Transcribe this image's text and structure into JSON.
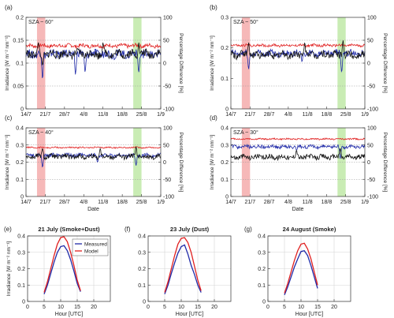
{
  "figure": {
    "colors": {
      "measured": "#1f2aa8",
      "model": "#e02020",
      "difference": "#111111",
      "red_band": "#f6b8b8",
      "green_band": "#c9ecb4",
      "grid": "#d6d6d6"
    },
    "axis_labels": {
      "irradiance": "Irradiance [W m⁻² nm⁻¹]",
      "pct_diff": "Percentage Difference [%]",
      "date": "Date",
      "hour": "Hour [UTC]"
    }
  },
  "chart_data": [
    {
      "type": "line",
      "panel": "(a)",
      "title": "SZA ~ 60°",
      "xlabel": "",
      "ylabel": "Irradiance [W m⁻² nm⁻¹]",
      "y2label": "Percentage Difference [%]",
      "x_ticks": [
        "14/7",
        "21/7",
        "28/7",
        "4/8",
        "11/8",
        "18/8",
        "25/8",
        "1/9"
      ],
      "ylim": [
        0,
        0.2
      ],
      "y_ticks": [
        0,
        0.05,
        0.1,
        0.15,
        0.2
      ],
      "y2lim": [
        -100,
        100
      ],
      "y2_ticks": [
        -100,
        -50,
        0,
        50,
        100
      ],
      "grid": "horizontal dotted",
      "bands": [
        {
          "color": "red",
          "from": "18/7",
          "to": "21/7"
        },
        {
          "color": "green",
          "from": "22/8",
          "to": "25/8"
        }
      ],
      "series": [
        {
          "role": "model",
          "base": 0.138,
          "noise": 0.004
        },
        {
          "role": "measured",
          "base": 0.12,
          "noise": 0.009,
          "dips": [
            {
              "day": 6,
              "to": 0.065
            },
            {
              "day": 18,
              "to": 0.075
            },
            {
              "day": 21.5,
              "to": 0.08
            },
            {
              "day": 41,
              "to": 0.08
            }
          ]
        },
        {
          "role": "difference",
          "axis": "right",
          "base": 20,
          "noise": 9,
          "dips": [
            {
              "day": 4.5,
              "to": 45
            },
            {
              "day": 6,
              "to": -5
            },
            {
              "day": 28,
              "to": 45
            },
            {
              "day": 41,
              "to": 45
            }
          ]
        }
      ]
    },
    {
      "type": "line",
      "panel": "(b)",
      "title": "SZA ~ 50°",
      "xlabel": "",
      "ylabel": "Irradiance [W m⁻² nm⁻¹]",
      "y2label": "Percentage Difference [%]",
      "x_ticks": [
        "14/7",
        "21/7",
        "28/7",
        "4/8",
        "11/8",
        "18/8",
        "25/8",
        "1/9"
      ],
      "ylim": [
        0,
        0.3
      ],
      "y_ticks": [
        0,
        0.1,
        0.2,
        0.3
      ],
      "y2lim": [
        -100,
        100
      ],
      "y2_ticks": [
        -100,
        -50,
        0,
        50,
        100
      ],
      "grid": "horizontal dotted",
      "bands": [
        {
          "color": "red",
          "from": "18/7",
          "to": "21/7"
        },
        {
          "color": "green",
          "from": "22/8",
          "to": "25/8"
        }
      ],
      "series": [
        {
          "role": "model",
          "base": 0.208,
          "noise": 0.004
        },
        {
          "role": "measured",
          "base": 0.182,
          "noise": 0.01,
          "dips": [
            {
              "day": 6.5,
              "to": 0.13
            },
            {
              "day": 26,
              "to": 0.155
            },
            {
              "day": 40.5,
              "to": 0.12
            }
          ]
        },
        {
          "role": "difference",
          "axis": "right",
          "base": 18,
          "noise": 8,
          "dips": [
            {
              "day": 6.5,
              "to": 45
            },
            {
              "day": 27,
              "to": 45
            },
            {
              "day": 41,
              "to": 50
            }
          ]
        }
      ]
    },
    {
      "type": "line",
      "panel": "(c)",
      "title": "SZA ~ 40°",
      "xlabel": "Date",
      "ylabel": "Irradiance [W m⁻² nm⁻¹]",
      "y2label": "Percentage Difference [%]",
      "x_ticks": [
        "14/7",
        "21/7",
        "28/7",
        "4/8",
        "11/8",
        "18/8",
        "25/8",
        "1/9"
      ],
      "ylim": [
        0,
        0.4
      ],
      "y_ticks": [
        0,
        0.1,
        0.2,
        0.3,
        0.4
      ],
      "y2lim": [
        -100,
        100
      ],
      "y2_ticks": [
        -100,
        -50,
        0,
        50,
        100
      ],
      "grid": "horizontal dotted",
      "bands": [
        {
          "color": "red",
          "from": "18/7",
          "to": "21/7"
        },
        {
          "color": "green",
          "from": "22/8",
          "to": "25/8"
        }
      ],
      "series": [
        {
          "role": "model",
          "base": 0.285,
          "noise": 0.004
        },
        {
          "role": "measured",
          "base": 0.24,
          "noise": 0.01,
          "dips": [
            {
              "day": 6,
              "to": 0.17
            },
            {
              "day": 26,
              "to": 0.2
            },
            {
              "day": 40,
              "to": 0.18
            }
          ]
        },
        {
          "role": "difference",
          "axis": "right",
          "base": 16,
          "noise": 7,
          "dips": [
            {
              "day": 6,
              "to": 40
            },
            {
              "day": 27,
              "to": 40
            },
            {
              "day": 40,
              "to": 45
            }
          ]
        }
      ]
    },
    {
      "type": "line",
      "panel": "(d)",
      "title": "SZA ~ 30°",
      "xlabel": "Date",
      "ylabel": "Irradiance [W m⁻² nm⁻¹]",
      "y2label": "Percentage Difference [%]",
      "x_ticks": [
        "14/7",
        "21/7",
        "28/7",
        "4/8",
        "11/8",
        "18/8",
        "25/8",
        "1/9"
      ],
      "ylim": [
        0,
        0.4
      ],
      "y_ticks": [
        0,
        0.1,
        0.2,
        0.3,
        0.4
      ],
      "y2lim": [
        -100,
        100
      ],
      "y2_ticks": [
        -100,
        -50,
        0,
        50,
        100
      ],
      "grid": "horizontal dotted",
      "bands": [
        {
          "color": "red",
          "from": "18/7",
          "to": "21/7"
        },
        {
          "color": "green",
          "from": "22/8",
          "to": "25/8"
        }
      ],
      "series": [
        {
          "role": "model",
          "base": 0.335,
          "noise": 0.004
        },
        {
          "role": "measured",
          "base": 0.29,
          "noise": 0.01,
          "dips": [
            {
              "day": 24,
              "to": 0.27
            },
            {
              "day": 40,
              "to": 0.22
            }
          ]
        },
        {
          "role": "difference",
          "axis": "right",
          "base": 15,
          "noise": 7,
          "dips": [
            {
              "day": 24,
              "to": 35
            },
            {
              "day": 40,
              "to": 40
            }
          ]
        }
      ]
    },
    {
      "type": "line",
      "panel": "(e)",
      "title": "21 July (Smoke+Dust)",
      "xlabel": "Hour [UTC]",
      "ylabel": "Irradiance [W m⁻² nm⁻¹]",
      "xlim": [
        0,
        25
      ],
      "x_ticks": [
        0,
        5,
        10,
        15,
        20
      ],
      "ylim": [
        0,
        0.4
      ],
      "y_ticks": [
        0,
        0.1,
        0.2,
        0.3,
        0.4
      ],
      "grid": "both",
      "legend": "top-right",
      "legend_entries": [
        "Measured",
        "Model"
      ],
      "series": [
        {
          "name": "Measured",
          "role": "measured",
          "x": [
            5,
            6,
            7,
            8,
            9,
            10,
            11,
            12,
            13,
            14,
            15,
            16
          ],
          "y": [
            0.045,
            0.1,
            0.17,
            0.24,
            0.3,
            0.335,
            0.34,
            0.31,
            0.255,
            0.185,
            0.11,
            0.06
          ]
        },
        {
          "name": "Model",
          "role": "model",
          "x": [
            5,
            6,
            7,
            8,
            9,
            10,
            11,
            12,
            13,
            14,
            15,
            16
          ],
          "y": [
            0.055,
            0.12,
            0.2,
            0.28,
            0.35,
            0.39,
            0.395,
            0.365,
            0.3,
            0.22,
            0.13,
            0.065
          ]
        }
      ]
    },
    {
      "type": "line",
      "panel": "(f)",
      "title": "23 July (Dust)",
      "xlabel": "Hour [UTC]",
      "ylabel": "",
      "xlim": [
        0,
        25
      ],
      "x_ticks": [
        0,
        5,
        10,
        15,
        20
      ],
      "ylim": [
        0,
        0.4
      ],
      "y_ticks": [
        0,
        0.1,
        0.2,
        0.3,
        0.4
      ],
      "grid": "both",
      "series": [
        {
          "role": "measured",
          "x": [
            5,
            6,
            7,
            8,
            9,
            10,
            11,
            12,
            13,
            14,
            15,
            16
          ],
          "y": [
            0.045,
            0.1,
            0.17,
            0.235,
            0.295,
            0.335,
            0.345,
            0.29,
            0.22,
            0.165,
            0.1,
            0.055
          ]
        },
        {
          "role": "model",
          "x": [
            5,
            6,
            7,
            8,
            9,
            10,
            11,
            12,
            13,
            14,
            15,
            16
          ],
          "y": [
            0.055,
            0.12,
            0.2,
            0.28,
            0.35,
            0.385,
            0.39,
            0.36,
            0.3,
            0.215,
            0.13,
            0.065
          ]
        }
      ]
    },
    {
      "type": "line",
      "panel": "(g)",
      "title": "24 August (Smoke)",
      "xlabel": "Hour [UTC]",
      "ylabel": "",
      "xlim": [
        0,
        25
      ],
      "x_ticks": [
        0,
        5,
        10,
        15,
        20
      ],
      "ylim": [
        0,
        0.4
      ],
      "y_ticks": [
        0,
        0.1,
        0.2,
        0.3,
        0.4
      ],
      "grid": "both",
      "series": [
        {
          "role": "measured",
          "x": [
            5,
            6,
            7,
            8,
            9,
            10,
            11,
            12,
            13,
            14,
            15
          ],
          "y": [
            0.04,
            0.09,
            0.15,
            0.21,
            0.26,
            0.305,
            0.31,
            0.28,
            0.22,
            0.15,
            0.08
          ]
        },
        {
          "role": "model",
          "x": [
            5,
            6,
            7,
            8,
            9,
            10,
            11,
            12,
            13,
            14,
            15
          ],
          "y": [
            0.05,
            0.11,
            0.18,
            0.25,
            0.31,
            0.35,
            0.355,
            0.32,
            0.26,
            0.18,
            0.1
          ]
        }
      ]
    }
  ]
}
